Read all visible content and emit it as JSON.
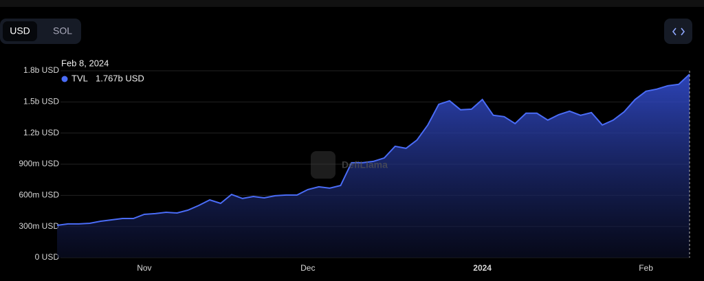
{
  "controls": {
    "currency_options": [
      "USD",
      "SOL"
    ]
  },
  "watermark": "DefiLlama",
  "chart_data": {
    "type": "area",
    "tooltip_title": "Feb 8, 2024",
    "categories": [
      null,
      null,
      null,
      null,
      null,
      null,
      null,
      null,
      "Nov",
      null,
      null,
      null,
      null,
      null,
      null,
      null,
      null,
      null,
      null,
      null,
      null,
      null,
      null,
      "Dec",
      null,
      null,
      null,
      null,
      null,
      null,
      null,
      null,
      null,
      null,
      null,
      null,
      null,
      null,
      null,
      "2024",
      null,
      null,
      null,
      null,
      null,
      null,
      null,
      null,
      null,
      null,
      null,
      null,
      null,
      null,
      "Feb",
      null,
      null,
      null,
      null
    ],
    "series": [
      {
        "name": "TVL",
        "color": "#4a6cf7",
        "values": [
          311000000,
          325000000,
          325000000,
          331000000,
          351000000,
          364000000,
          377000000,
          377000000,
          417000000,
          424000000,
          437000000,
          430000000,
          457000000,
          503000000,
          556000000,
          523000000,
          609000000,
          570000000,
          589000000,
          576000000,
          596000000,
          603000000,
          603000000,
          656000000,
          682000000,
          669000000,
          695000000,
          914000000,
          914000000,
          927000000,
          960000000,
          1073000000,
          1053000000,
          1132000000,
          1278000000,
          1477000000,
          1510000000,
          1424000000,
          1430000000,
          1523000000,
          1371000000,
          1358000000,
          1291000000,
          1391000000,
          1391000000,
          1325000000,
          1377000000,
          1411000000,
          1371000000,
          1397000000,
          1278000000,
          1325000000,
          1404000000,
          1523000000,
          1603000000,
          1623000000,
          1656000000,
          1669000000,
          1767000000
        ],
        "value_labels": [
          null,
          null,
          null,
          null,
          null,
          null,
          null,
          null,
          null,
          null,
          null,
          null,
          null,
          null,
          null,
          null,
          null,
          null,
          null,
          null,
          null,
          null,
          null,
          null,
          null,
          null,
          null,
          null,
          null,
          null,
          null,
          null,
          null,
          null,
          null,
          null,
          null,
          null,
          null,
          null,
          null,
          null,
          null,
          null,
          null,
          null,
          null,
          null,
          null,
          null,
          null,
          null,
          null,
          null,
          null,
          null,
          null,
          null,
          "1.767b USD"
        ]
      }
    ],
    "ylim": [
      0,
      1800000000
    ],
    "yticks": [
      {
        "value": 0,
        "label": "0 USD"
      },
      {
        "value": 300000000,
        "label": "300m USD"
      },
      {
        "value": 600000000,
        "label": "600m USD"
      },
      {
        "value": 900000000,
        "label": "900m USD"
      },
      {
        "value": 1200000000,
        "label": "1.2b USD"
      },
      {
        "value": 1500000000,
        "label": "1.5b USD"
      },
      {
        "value": 1800000000,
        "label": "1.8b USD"
      }
    ],
    "grid": true
  }
}
